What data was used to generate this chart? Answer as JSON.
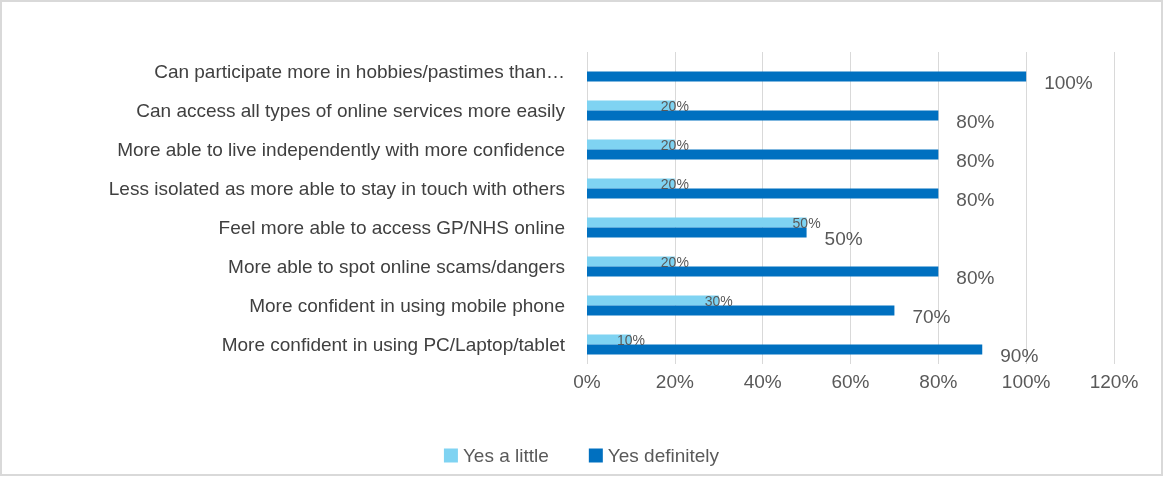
{
  "chart_data": {
    "type": "bar",
    "orientation": "horizontal",
    "categories": [
      "Can participate more in hobbies/pastimes than…",
      "Can access all types of online services more easily",
      "More able to live independently with more confidence",
      "Less isolated as more able to stay in touch with others",
      "Feel more able to access GP/NHS online",
      "More able to spot online scams/dangers",
      "More confident in using mobile phone",
      "More confident in using PC/Laptop/tablet"
    ],
    "series": [
      {
        "name": "Yes a little",
        "color": "#7fd3f2",
        "values": [
          null,
          20,
          20,
          20,
          50,
          20,
          30,
          10
        ],
        "value_labels": [
          null,
          "20%",
          "20%",
          "20%",
          "50%",
          "20%",
          "30%",
          "10%"
        ]
      },
      {
        "name": "Yes definitely",
        "color": "#0070c0",
        "values": [
          100,
          80,
          80,
          80,
          50,
          80,
          70,
          90
        ],
        "value_labels": [
          "100%",
          "80%",
          "80%",
          "80%",
          "50%",
          "80%",
          "70%",
          "90%"
        ]
      }
    ],
    "xlim": [
      0,
      120
    ],
    "xticks": [
      {
        "value": 0,
        "label": "0%"
      },
      {
        "value": 20,
        "label": "20%"
      },
      {
        "value": 40,
        "label": "40%"
      },
      {
        "value": 60,
        "label": "60%"
      },
      {
        "value": 80,
        "label": "80%"
      },
      {
        "value": 100,
        "label": "100%"
      },
      {
        "value": 120,
        "label": "120%"
      }
    ],
    "grid": "x",
    "legend": "bottom"
  }
}
